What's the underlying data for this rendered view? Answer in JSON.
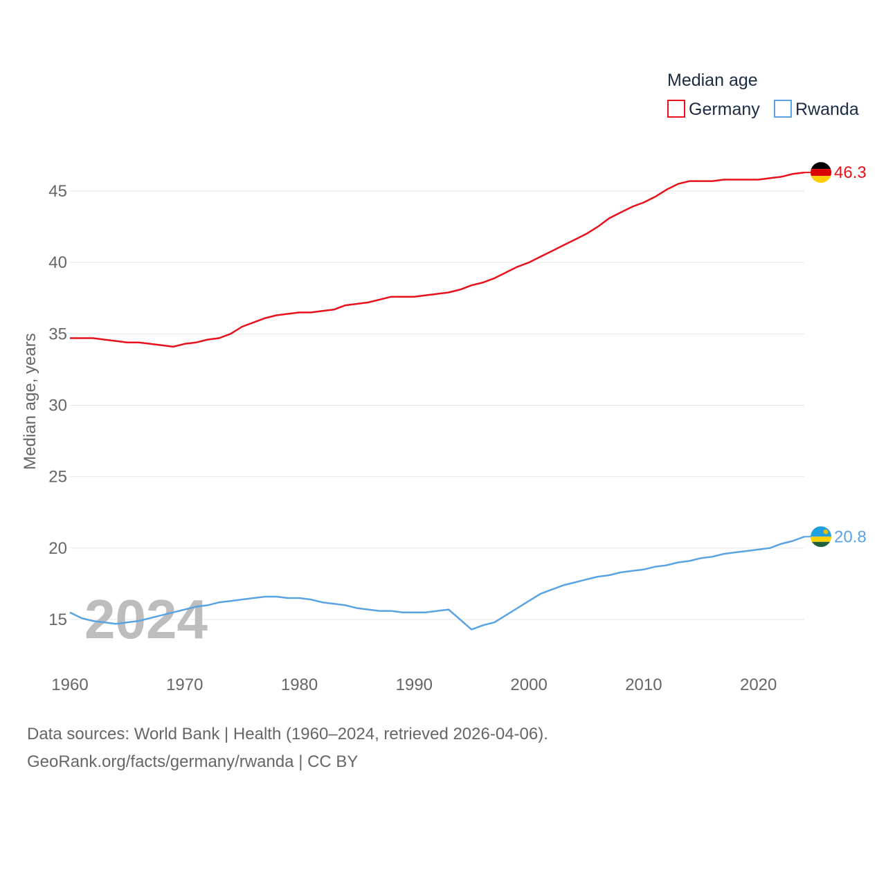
{
  "chart_data": {
    "type": "line",
    "title": "",
    "xlabel": "",
    "ylabel": "Median age, years",
    "xlim": [
      1960,
      2024
    ],
    "ylim": [
      12.5,
      47
    ],
    "x_ticks": [
      1960,
      1970,
      1980,
      1990,
      2000,
      2010,
      2020
    ],
    "y_ticks": [
      15,
      20,
      25,
      30,
      35,
      40,
      45
    ],
    "grid": true,
    "legend": {
      "title": "Median age",
      "position": "top-right"
    },
    "watermark_year": "2024",
    "x": [
      1960,
      1961,
      1962,
      1963,
      1964,
      1965,
      1966,
      1967,
      1968,
      1969,
      1970,
      1971,
      1972,
      1973,
      1974,
      1975,
      1976,
      1977,
      1978,
      1979,
      1980,
      1981,
      1982,
      1983,
      1984,
      1985,
      1986,
      1987,
      1988,
      1989,
      1990,
      1991,
      1992,
      1993,
      1994,
      1995,
      1996,
      1997,
      1998,
      1999,
      2000,
      2001,
      2002,
      2003,
      2004,
      2005,
      2006,
      2007,
      2008,
      2009,
      2010,
      2011,
      2012,
      2013,
      2014,
      2015,
      2016,
      2017,
      2018,
      2019,
      2020,
      2021,
      2022,
      2023,
      2024
    ],
    "series": [
      {
        "name": "Germany",
        "color": "#e8101a",
        "end_label": "46.3",
        "flag": "germany-flag-icon",
        "values": [
          34.7,
          34.7,
          34.7,
          34.6,
          34.5,
          34.4,
          34.4,
          34.3,
          34.2,
          34.1,
          34.3,
          34.4,
          34.6,
          34.7,
          35.0,
          35.5,
          35.8,
          36.1,
          36.3,
          36.4,
          36.5,
          36.5,
          36.6,
          36.7,
          37.0,
          37.1,
          37.2,
          37.4,
          37.6,
          37.6,
          37.6,
          37.7,
          37.8,
          37.9,
          38.1,
          38.4,
          38.6,
          38.9,
          39.3,
          39.7,
          40.0,
          40.4,
          40.8,
          41.2,
          41.6,
          42.0,
          42.5,
          43.1,
          43.5,
          43.9,
          44.2,
          44.6,
          45.1,
          45.5,
          45.7,
          45.7,
          45.7,
          45.8,
          45.8,
          45.8,
          45.8,
          45.9,
          46.0,
          46.2,
          46.3
        ]
      },
      {
        "name": "Rwanda",
        "color": "#5aa3e3",
        "end_label": "20.8",
        "flag": "rwanda-flag-icon",
        "values": [
          15.5,
          15.1,
          14.9,
          14.8,
          14.7,
          14.8,
          14.9,
          15.1,
          15.3,
          15.5,
          15.7,
          15.9,
          16.0,
          16.2,
          16.3,
          16.4,
          16.5,
          16.6,
          16.6,
          16.5,
          16.5,
          16.4,
          16.2,
          16.1,
          16.0,
          15.8,
          15.7,
          15.6,
          15.6,
          15.5,
          15.5,
          15.5,
          15.6,
          15.7,
          15.0,
          14.3,
          14.6,
          14.8,
          15.3,
          15.8,
          16.3,
          16.8,
          17.1,
          17.4,
          17.6,
          17.8,
          18.0,
          18.1,
          18.3,
          18.4,
          18.5,
          18.7,
          18.8,
          19.0,
          19.1,
          19.3,
          19.4,
          19.6,
          19.7,
          19.8,
          19.9,
          20.0,
          20.3,
          20.5,
          20.8
        ]
      }
    ]
  },
  "footer": {
    "line1": "Data sources: World Bank | Health (1960–2024, retrieved 2026-04-06).",
    "line2": "GeoRank.org/facts/germany/rwanda | CC BY"
  }
}
